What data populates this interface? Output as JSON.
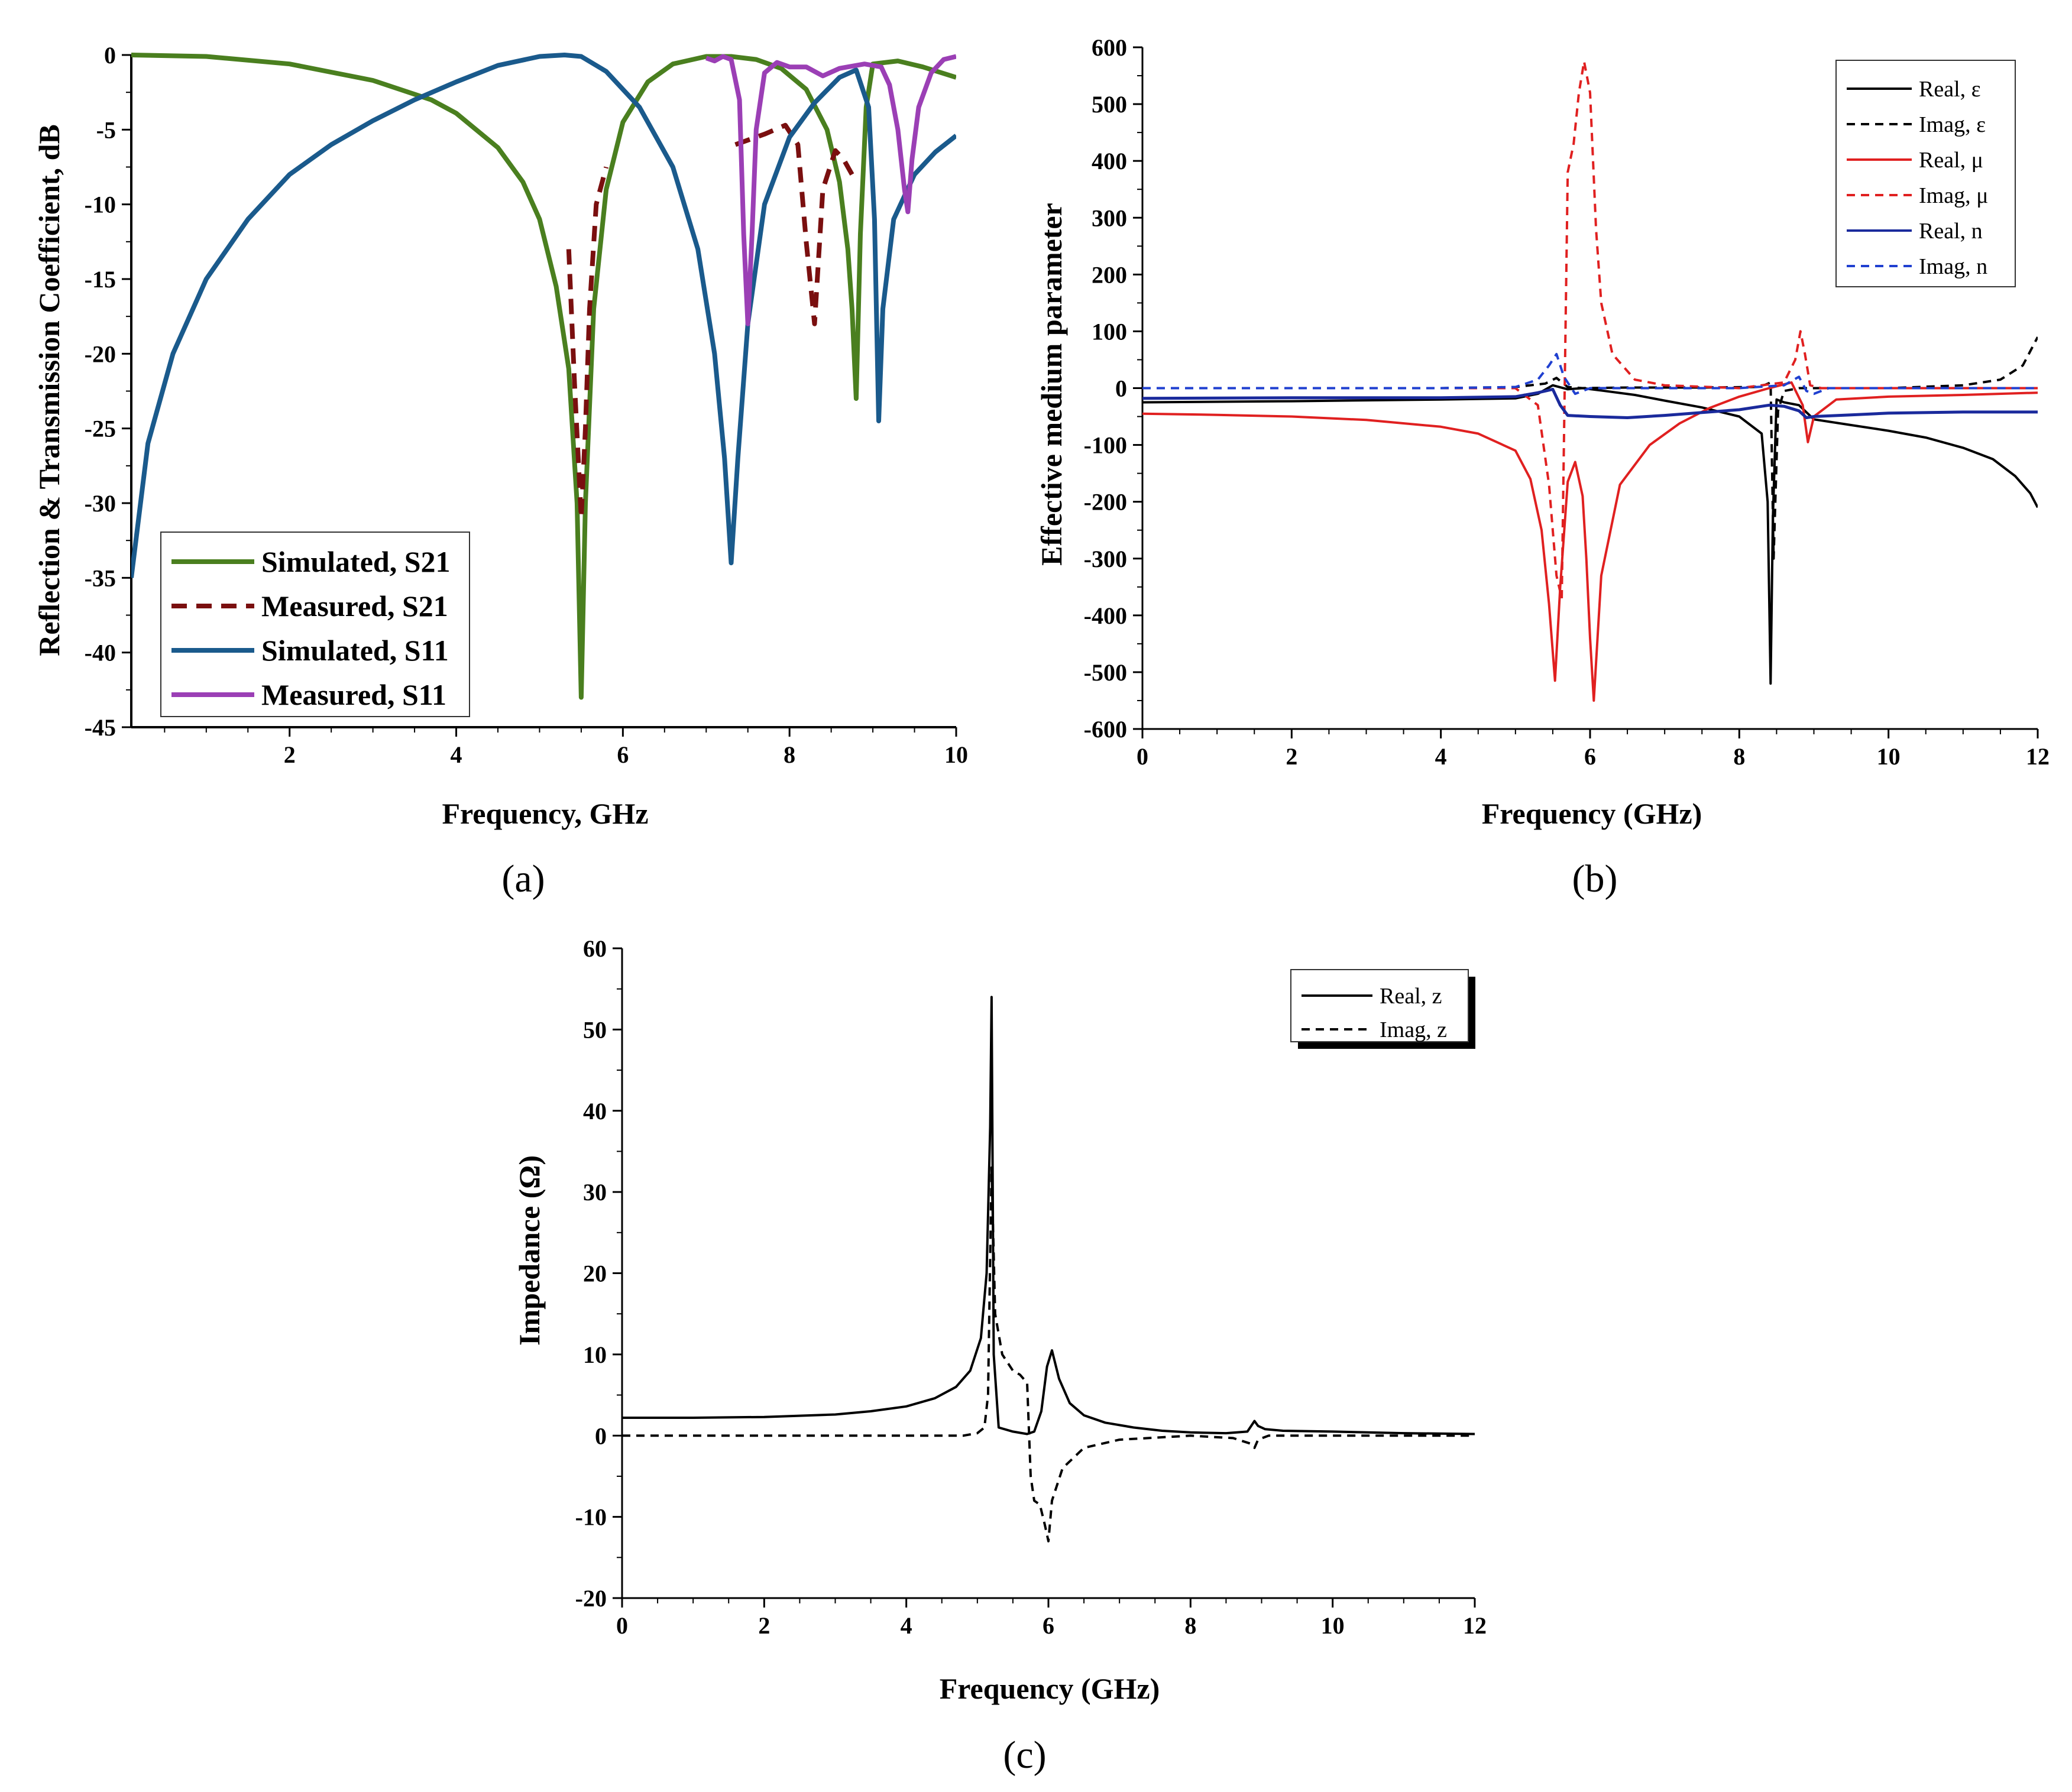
{
  "chart_data": [
    {
      "id": "a",
      "type": "line",
      "caption": "(a)",
      "xlabel": "Frequency, GHz",
      "ylabel": "Reflection & Transmission Coefficient, dB",
      "xlim": [
        0.1,
        10
      ],
      "ylim": [
        -45,
        0
      ],
      "xticks": [
        2,
        4,
        6,
        8,
        10
      ],
      "yticks": [
        0,
        -5,
        -10,
        -15,
        -20,
        -25,
        -30,
        -35,
        -40,
        -45
      ],
      "legend_position": "bottom-left",
      "series": [
        {
          "name": "Simulated, S21",
          "color": "#4a7f1f",
          "dash": "solid",
          "width": 8,
          "x": [
            0.1,
            1,
            2,
            3,
            3.7,
            4,
            4.5,
            4.8,
            5.0,
            5.2,
            5.35,
            5.45,
            5.5,
            5.55,
            5.65,
            5.8,
            6.0,
            6.3,
            6.6,
            7.0,
            7.3,
            7.6,
            7.9,
            8.2,
            8.45,
            8.6,
            8.7,
            8.75,
            8.8,
            8.85,
            8.92,
            9.0,
            9.3,
            9.6,
            10
          ],
          "y": [
            0,
            -0.1,
            -0.6,
            -1.7,
            -3.0,
            -3.9,
            -6.2,
            -8.5,
            -11,
            -15.5,
            -21,
            -30,
            -43,
            -30,
            -17,
            -9,
            -4.5,
            -1.8,
            -0.6,
            -0.1,
            -0.1,
            -0.3,
            -0.9,
            -2.3,
            -5.0,
            -8.5,
            -13,
            -17,
            -23,
            -12,
            -3.5,
            -0.6,
            -0.4,
            -0.8,
            -1.5
          ]
        },
        {
          "name": "Measured, S21",
          "color": "#7a0f0f",
          "dash": "dashed",
          "width": 8,
          "segments": [
            {
              "x": [
                5.35,
                5.42,
                5.5,
                5.55,
                5.6,
                5.68,
                5.8
              ],
              "y": [
                -13,
                -22,
                -31,
                -25,
                -17,
                -10,
                -7.5
              ]
            },
            {
              "x": [
                7.35,
                7.7,
                7.95,
                8.1,
                8.2,
                8.3,
                8.4,
                8.55,
                8.65,
                8.75
              ],
              "y": [
                -6.0,
                -5.3,
                -4.7,
                -6.0,
                -12.5,
                -18,
                -9,
                -6.4,
                -7,
                -8
              ]
            }
          ]
        },
        {
          "name": "Simulated, S11",
          "color": "#1a5a8c",
          "dash": "solid",
          "width": 8,
          "x": [
            0.1,
            0.3,
            0.6,
            1.0,
            1.5,
            2,
            2.5,
            3,
            3.5,
            4,
            4.5,
            5.0,
            5.3,
            5.5,
            5.8,
            6.2,
            6.6,
            6.9,
            7.1,
            7.22,
            7.3,
            7.38,
            7.5,
            7.7,
            8.0,
            8.3,
            8.6,
            8.8,
            8.95,
            9.02,
            9.07,
            9.12,
            9.25,
            9.5,
            9.75,
            10
          ],
          "y": [
            -35,
            -26,
            -20,
            -15,
            -11,
            -8,
            -6,
            -4.4,
            -3,
            -1.8,
            -0.7,
            -0.1,
            0,
            -0.1,
            -1.1,
            -3.5,
            -7.5,
            -13,
            -20,
            -27,
            -34,
            -27,
            -18,
            -10,
            -5.5,
            -3.2,
            -1.5,
            -1.0,
            -3.5,
            -11,
            -24.5,
            -17,
            -11,
            -8,
            -6.5,
            -5.4
          ]
        },
        {
          "name": "Measured, S11",
          "color": "#9b3fb5",
          "dash": "solid",
          "width": 8,
          "x": [
            7.0,
            7.1,
            7.2,
            7.3,
            7.4,
            7.45,
            7.5,
            7.55,
            7.6,
            7.7,
            7.85,
            8.0,
            8.2,
            8.4,
            8.6,
            8.9,
            9.1,
            9.2,
            9.3,
            9.38,
            9.42,
            9.47,
            9.55,
            9.7,
            9.85,
            10
          ],
          "y": [
            -0.2,
            -0.4,
            -0.1,
            -0.3,
            -3,
            -12,
            -18,
            -12,
            -5,
            -1.2,
            -0.5,
            -0.8,
            -0.8,
            -1.4,
            -0.9,
            -0.6,
            -0.8,
            -2,
            -5,
            -9,
            -10.5,
            -7,
            -3.5,
            -1.2,
            -0.3,
            -0.1
          ]
        }
      ]
    },
    {
      "id": "b",
      "type": "line",
      "caption": "(b)",
      "xlabel": "Frequency (GHz)",
      "ylabel": "Effective medium parameter",
      "xlim": [
        0,
        12
      ],
      "ylim": [
        -600,
        600
      ],
      "xticks": [
        0,
        2,
        4,
        6,
        8,
        10,
        12
      ],
      "yticks": [
        600,
        500,
        400,
        300,
        200,
        100,
        0,
        -100,
        -200,
        -300,
        -400,
        -500,
        -600
      ],
      "legend_position": "top-right",
      "series": [
        {
          "name": "Real, ε",
          "color": "#000000",
          "dash": "solid",
          "width": 4,
          "x": [
            0,
            2,
            4,
            5.0,
            5.3,
            5.5,
            5.7,
            5.9,
            6.2,
            6.6,
            7.0,
            7.5,
            8.0,
            8.3,
            8.38,
            8.42,
            8.45,
            8.5,
            8.6,
            8.8,
            9.0,
            9.5,
            10,
            10.5,
            11,
            11.4,
            11.7,
            11.9,
            12
          ],
          "y": [
            -25,
            -23,
            -20,
            -18,
            -10,
            5,
            -2,
            0,
            -5,
            -12,
            -22,
            -34,
            -50,
            -80,
            -200,
            -520,
            -230,
            -20,
            -25,
            -30,
            -55,
            -65,
            -75,
            -87,
            -105,
            -125,
            -155,
            -185,
            -210
          ]
        },
        {
          "name": "Imag, ε",
          "color": "#000000",
          "dash": "dashed",
          "width": 4,
          "x": [
            0,
            4,
            5.0,
            5.4,
            5.55,
            5.7,
            5.9,
            6.5,
            7.5,
            8.2,
            8.35,
            8.42,
            8.46,
            8.52,
            8.6,
            8.8,
            9.0,
            10,
            11,
            11.5,
            11.8,
            12
          ],
          "y": [
            0,
            0,
            2,
            8,
            18,
            2,
            0,
            1,
            1,
            2,
            6,
            10,
            -300,
            -40,
            -5,
            0,
            0,
            0,
            5,
            15,
            40,
            90
          ]
        },
        {
          "name": "Real, μ",
          "color": "#e02020",
          "dash": "solid",
          "width": 4,
          "x": [
            0,
            1,
            2,
            3,
            4,
            4.5,
            5.0,
            5.2,
            5.35,
            5.45,
            5.53,
            5.6,
            5.7,
            5.8,
            5.9,
            5.95,
            6.0,
            6.05,
            6.15,
            6.4,
            6.8,
            7.2,
            7.6,
            8.0,
            8.4,
            8.7,
            8.85,
            8.92,
            9.0,
            9.3,
            10,
            11,
            12
          ],
          "y": [
            -45,
            -47,
            -50,
            -56,
            -68,
            -80,
            -110,
            -160,
            -250,
            -380,
            -515,
            -350,
            -165,
            -130,
            -190,
            -300,
            -440,
            -550,
            -330,
            -170,
            -100,
            -62,
            -35,
            -15,
            0,
            10,
            -30,
            -95,
            -50,
            -20,
            -15,
            -12,
            -8
          ]
        },
        {
          "name": "Imag, μ",
          "color": "#e02020",
          "dash": "dashed",
          "width": 4,
          "x": [
            0,
            4,
            5.0,
            5.3,
            5.45,
            5.55,
            5.62,
            5.7,
            5.78,
            5.85,
            5.92,
            6.0,
            6.08,
            6.15,
            6.3,
            6.6,
            7.0,
            8.0,
            8.6,
            8.75,
            8.82,
            8.88,
            8.95,
            9.1,
            10,
            12
          ],
          "y": [
            0,
            0,
            0,
            -30,
            -170,
            -330,
            -370,
            380,
            430,
            520,
            575,
            520,
            280,
            150,
            60,
            15,
            5,
            0,
            10,
            50,
            100,
            60,
            5,
            0,
            0,
            0
          ]
        },
        {
          "name": "Real, n",
          "color": "#1a2a9c",
          "dash": "solid",
          "width": 5,
          "x": [
            0,
            2,
            4,
            5.0,
            5.3,
            5.5,
            5.6,
            5.7,
            6.0,
            6.5,
            7.0,
            7.5,
            8.0,
            8.4,
            8.6,
            8.8,
            8.9,
            9.0,
            9.5,
            10,
            11,
            12
          ],
          "y": [
            -18,
            -17,
            -17,
            -15,
            -8,
            -2,
            -30,
            -48,
            -50,
            -52,
            -48,
            -43,
            -38,
            -30,
            -32,
            -40,
            -52,
            -50,
            -47,
            -44,
            -42,
            -42
          ]
        },
        {
          "name": "Imag, n",
          "color": "#2040d0",
          "dash": "dashed",
          "width": 4,
          "x": [
            0,
            4,
            5.0,
            5.3,
            5.45,
            5.55,
            5.65,
            5.8,
            6.0,
            7.0,
            8.0,
            8.6,
            8.8,
            8.9,
            9.0,
            9.2,
            10,
            12
          ],
          "y": [
            0,
            0,
            2,
            15,
            40,
            60,
            20,
            -10,
            0,
            0,
            0,
            5,
            20,
            -5,
            -10,
            0,
            0,
            0
          ]
        }
      ]
    },
    {
      "id": "c",
      "type": "line",
      "caption": "(c)",
      "xlabel": "Frequency (GHz)",
      "ylabel": "Impedance (Ω)",
      "xlim": [
        0,
        12
      ],
      "ylim": [
        -20,
        60
      ],
      "xticks": [
        0,
        2,
        4,
        6,
        8,
        10,
        12
      ],
      "yticks": [
        60,
        50,
        40,
        30,
        20,
        10,
        0,
        -10,
        -20
      ],
      "legend_position": "top-right",
      "series": [
        {
          "name": "Real, z",
          "color": "#000000",
          "dash": "solid",
          "width": 4,
          "x": [
            0,
            1,
            2,
            3,
            3.5,
            4,
            4.4,
            4.7,
            4.9,
            5.05,
            5.13,
            5.18,
            5.2,
            5.23,
            5.3,
            5.5,
            5.7,
            5.8,
            5.9,
            5.98,
            6.05,
            6.15,
            6.3,
            6.5,
            6.8,
            7.2,
            7.6,
            8.0,
            8.5,
            8.8,
            8.9,
            8.95,
            9.05,
            9.3,
            10,
            11,
            12
          ],
          "y": [
            2.2,
            2.2,
            2.3,
            2.6,
            3.0,
            3.6,
            4.6,
            6.0,
            8.0,
            12,
            20,
            38,
            54,
            10,
            1,
            0.5,
            0.2,
            0.5,
            3,
            8.5,
            10.5,
            7,
            4,
            2.5,
            1.6,
            1.0,
            0.6,
            0.4,
            0.3,
            0.5,
            1.8,
            1.2,
            0.8,
            0.6,
            0.5,
            0.3,
            0.2
          ]
        },
        {
          "name": "Imag, z",
          "color": "#000000",
          "dash": "dashed",
          "width": 4,
          "x": [
            0,
            2,
            4,
            4.8,
            5.0,
            5.1,
            5.15,
            5.18,
            5.2,
            5.25,
            5.35,
            5.5,
            5.6,
            5.7,
            5.75,
            5.8,
            5.88,
            5.95,
            6.0,
            6.05,
            6.2,
            6.5,
            7.0,
            8.0,
            8.6,
            8.85,
            8.9,
            8.95,
            9.1,
            10,
            12
          ],
          "y": [
            0,
            0,
            0,
            0,
            0.3,
            1,
            5,
            22,
            33,
            15,
            10,
            8,
            7.5,
            6.5,
            -5,
            -8,
            -8.5,
            -11,
            -13,
            -8,
            -4,
            -1.5,
            -0.5,
            0,
            -0.3,
            -1,
            -1.5,
            -0.5,
            0,
            0,
            0
          ]
        }
      ]
    }
  ]
}
